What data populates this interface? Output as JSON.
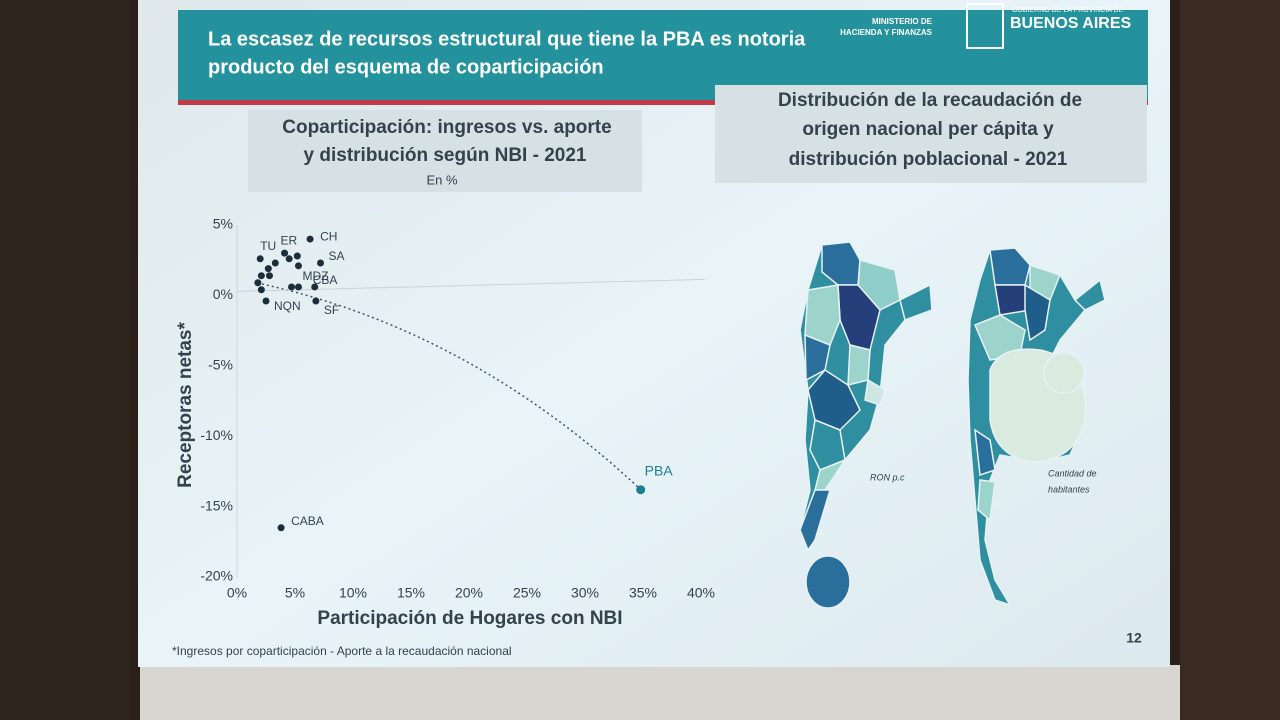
{
  "header": {
    "title_lines": [
      "La escasez de recursos estructural que tiene la PBA es notoria",
      "producto del esquema de coparticipación"
    ],
    "ministry_lines": [
      "MINISTERIO DE",
      "HACIENDA Y FINANZAS"
    ],
    "gov_small": "GOBIERNO DE LA PROVINCIA DE",
    "gov_large": "BUENOS AIRES"
  },
  "chart_data": {
    "type": "scatter",
    "title_lines": [
      "Coparticipación: ingresos vs. aporte",
      "y distribución según NBI - 2021"
    ],
    "subtitle": "En %",
    "x_label": "Participación de Hogares con NBI",
    "y_label": "Receptoras netas*",
    "x": [
      2.0,
      2.7,
      3.3,
      2.1,
      2.8,
      1.8,
      2.1,
      2.5,
      4.1,
      4.5,
      5.2,
      5.3,
      6.3,
      7.2,
      4.7,
      5.3,
      6.7,
      6.8,
      34.8,
      3.8
    ],
    "y": [
      2.6,
      1.9,
      2.3,
      1.4,
      1.4,
      0.9,
      0.4,
      -0.4,
      3.0,
      2.6,
      2.8,
      2.1,
      4.0,
      2.3,
      0.6,
      0.6,
      0.6,
      -0.4,
      -13.8,
      -16.5
    ],
    "labels": [
      "TU",
      null,
      null,
      null,
      null,
      null,
      null,
      "NQN",
      "ER",
      null,
      null,
      null,
      "CH",
      "SA",
      null,
      "MDZ",
      "CBA",
      "SF",
      "PBA",
      "CABA"
    ],
    "colors": [
      "#1c2e3c",
      "#1c2e3c",
      "#1c2e3c",
      "#1c2e3c",
      "#1c2e3c",
      "#1c2e3c",
      "#1c2e3c",
      "#1c2e3c",
      "#1c2e3c",
      "#1c2e3c",
      "#1c2e3c",
      "#1c2e3c",
      "#1c2e3c",
      "#1c2e3c",
      "#1c2e3c",
      "#1c2e3c",
      "#1c2e3c",
      "#1c2e3c",
      "#1a7f91",
      "#1c2e3c"
    ],
    "xlim": [
      0,
      40
    ],
    "ylim": [
      -20,
      5
    ],
    "xticks": [
      {
        "value": 0,
        "label": "0%"
      },
      {
        "value": 5,
        "label": "5%"
      },
      {
        "value": 10,
        "label": "10%"
      },
      {
        "value": 15,
        "label": "15%"
      },
      {
        "value": 20,
        "label": "20%"
      },
      {
        "value": 25,
        "label": "25%"
      },
      {
        "value": 30,
        "label": "30%"
      },
      {
        "value": 35,
        "label": "35%"
      },
      {
        "value": 40,
        "label": "40%"
      }
    ],
    "yticks": [
      {
        "value": 5,
        "label": "5%"
      },
      {
        "value": 0,
        "label": "0%"
      },
      {
        "value": -5,
        "label": "-5%"
      },
      {
        "value": -10,
        "label": "-10%"
      },
      {
        "value": -15,
        "label": "-15%"
      },
      {
        "value": -20,
        "label": "-20%"
      }
    ]
  },
  "maps": {
    "title_lines": [
      "Distribución de la recaudación de",
      "origen nacional per cápita y",
      "distribución poblacional - 2021"
    ],
    "map1_label": "RON p.c",
    "map2_label_lines": [
      "Cantidad de",
      "habitantes"
    ]
  },
  "footnote": "*Ingresos por coparticipación - Aporte a la recaudación nacional",
  "page_number": "12"
}
